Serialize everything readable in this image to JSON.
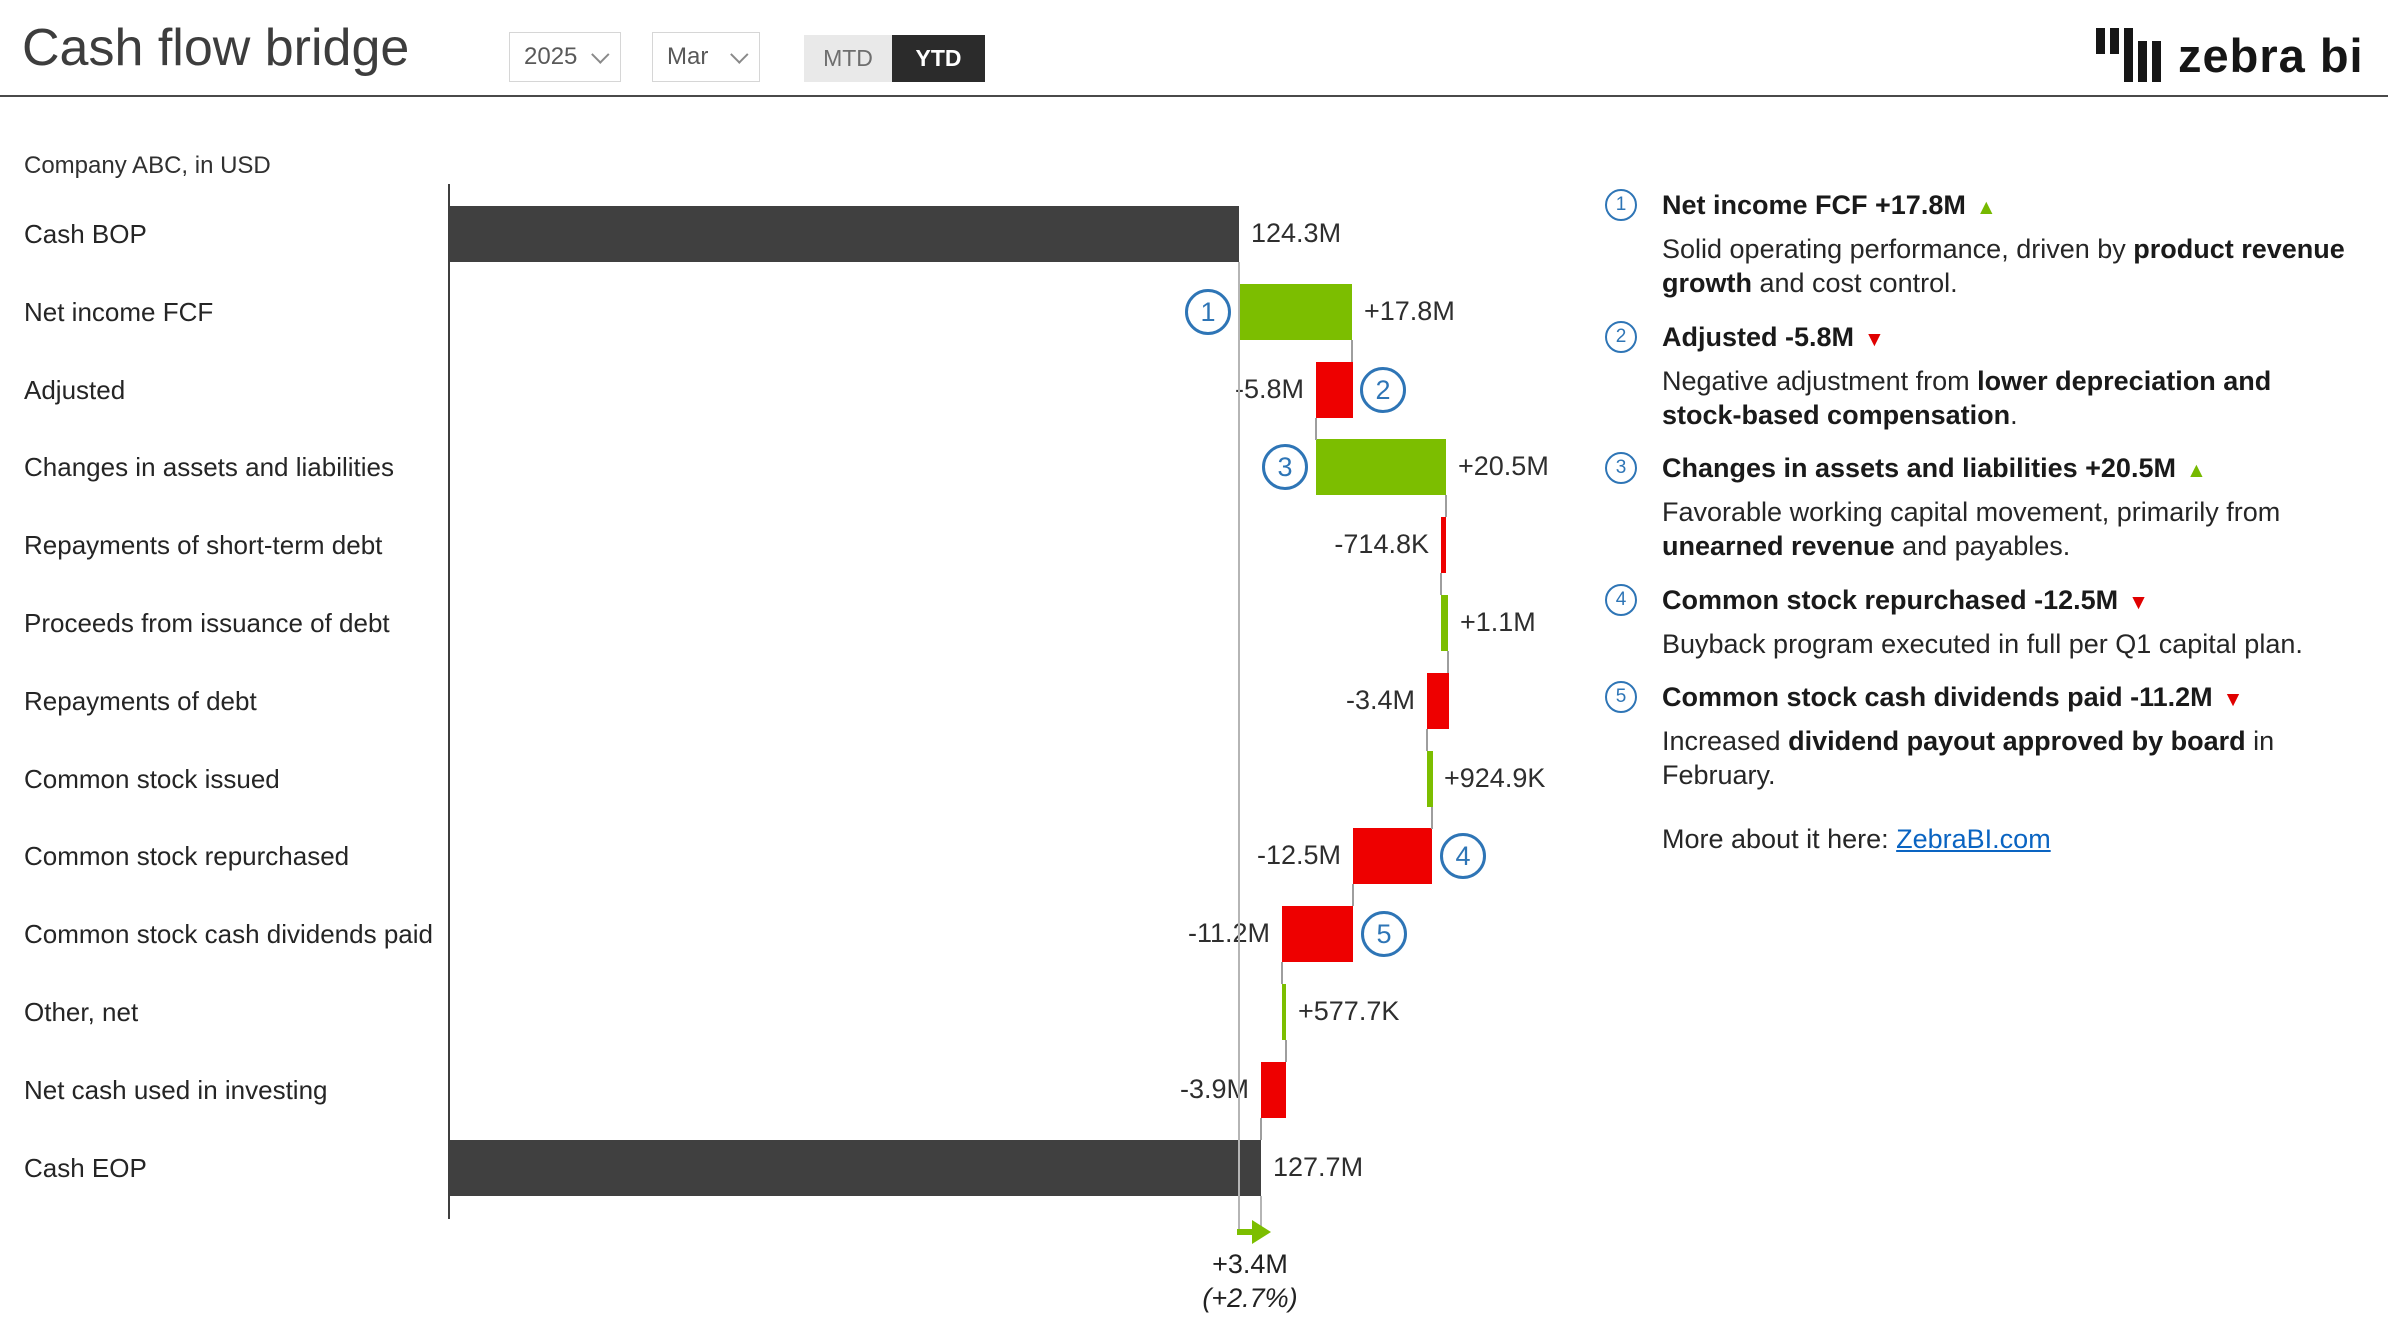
{
  "header": {
    "title": "Cash flow bridge",
    "year_filter": "2025",
    "month_filter": "Mar",
    "toggle": {
      "mtd": "MTD",
      "ytd": "YTD",
      "selected": "YTD"
    },
    "brand": "zebra bi"
  },
  "chart_data": {
    "type": "waterfall",
    "title": "Cash flow bridge",
    "subtitle": "Company ABC, in USD",
    "unit": "USD, values in millions unless noted",
    "categories": [
      "Cash BOP",
      "Net income FCF",
      "Adjusted",
      "Changes in assets and liabilities",
      "Repayments of short-term debt",
      "Proceeds from issuance of debt",
      "Repayments of debt",
      "Common stock issued",
      "Common stock repurchased",
      "Common stock cash dividends paid",
      "Other, net",
      "Net cash used in investing",
      "Cash EOP"
    ],
    "values": [
      124.3,
      17.8,
      -5.8,
      20.5,
      -0.7148,
      1.1,
      -3.4,
      0.9249,
      -12.5,
      -11.2,
      0.5777,
      -3.9,
      127.7
    ],
    "value_labels": [
      "124.3M",
      "+17.8M",
      "-5.8M",
      "+20.5M",
      "-714.8K",
      "+1.1M",
      "-3.4M",
      "+924.9K",
      "-12.5M",
      "-11.2M",
      "+577.7K",
      "-3.9M",
      "127.7M"
    ],
    "row_types": [
      "total",
      "flow",
      "flow",
      "flow",
      "flow",
      "flow",
      "flow",
      "flow",
      "flow",
      "flow",
      "flow",
      "flow",
      "total"
    ],
    "markers": [
      {
        "num": "1",
        "row": 1,
        "side": "left"
      },
      {
        "num": "2",
        "row": 2,
        "side": "right"
      },
      {
        "num": "3",
        "row": 3,
        "side": "left"
      },
      {
        "num": "4",
        "row": 8,
        "side": "right"
      },
      {
        "num": "5",
        "row": 9,
        "side": "right"
      }
    ],
    "variance": {
      "value": "+3.4M",
      "percent": "(+2.7%)"
    },
    "colors": {
      "total": "#404040",
      "positive": "#7cbe00",
      "negative": "#ee0000",
      "marker": "#2e75b6",
      "connector": "#9e9e9e",
      "arrow": "#7cbe00"
    },
    "legend": "none",
    "grid": "off"
  },
  "commentary": {
    "items": [
      {
        "num": "1",
        "title": "Net income FCF +17.8M",
        "dir": "up",
        "body": [
          {
            "t": "Solid operating performance, driven by "
          },
          {
            "t": "product revenue growth",
            "b": true
          },
          {
            "t": " and cost control."
          }
        ]
      },
      {
        "num": "2",
        "title": "Adjusted -5.8M",
        "dir": "down",
        "body": [
          {
            "t": "Negative adjustment from "
          },
          {
            "t": "lower depreciation and stock-based compensation",
            "b": true
          },
          {
            "t": "."
          }
        ]
      },
      {
        "num": "3",
        "title": "Changes in assets and liabilities +20.5M",
        "dir": "up",
        "body": [
          {
            "t": "Favorable working capital movement, primarily from "
          },
          {
            "t": "unearned revenue",
            "b": true
          },
          {
            "t": " and payables."
          }
        ]
      },
      {
        "num": "4",
        "title": "Common stock repurchased -12.5M",
        "dir": "down",
        "body": [
          {
            "t": "Buyback program executed in full per Q1 capital plan."
          }
        ]
      },
      {
        "num": "5",
        "title": "Common stock cash dividends paid -11.2M",
        "dir": "down",
        "body": [
          {
            "t": "Increased "
          },
          {
            "t": "dividend payout approved by board",
            "b": true
          },
          {
            "t": " in February."
          }
        ]
      }
    ],
    "more": {
      "prefix": "More about it here: ",
      "link_text": "ZebraBI.com"
    }
  }
}
